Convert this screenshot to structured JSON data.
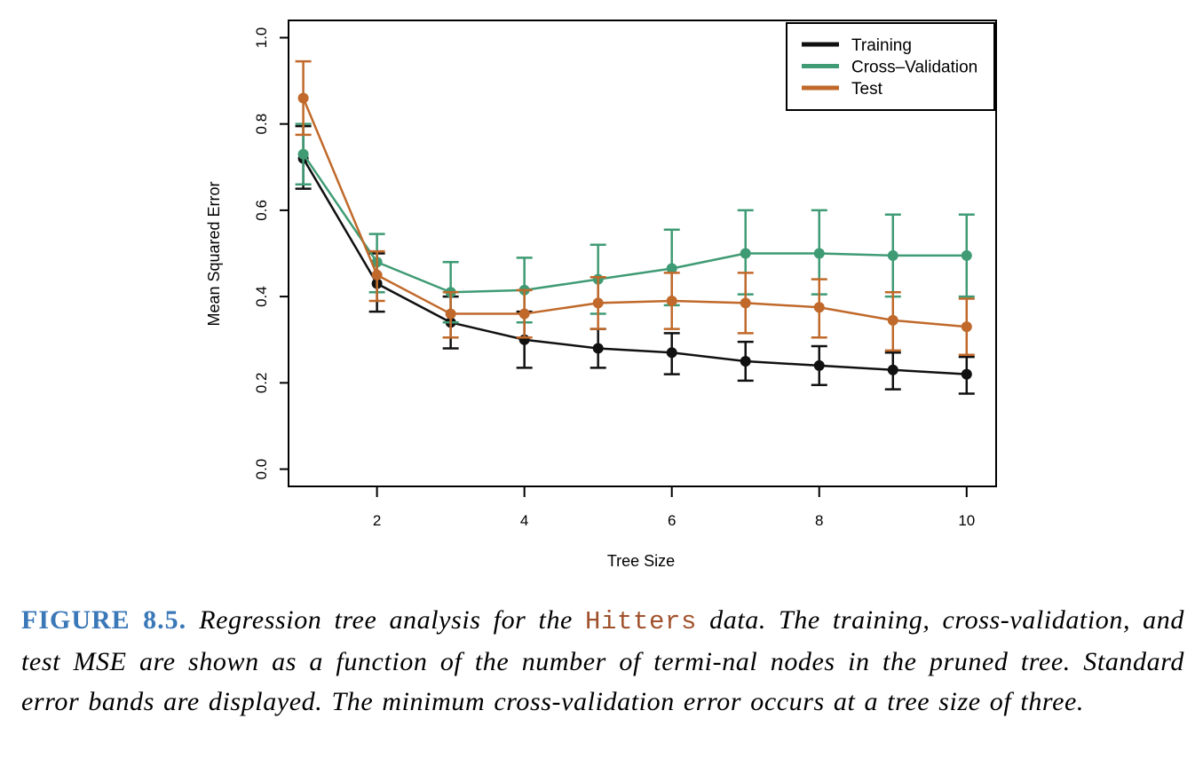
{
  "chart_data": {
    "type": "line",
    "xlabel": "Tree Size",
    "ylabel": "Mean Squared Error",
    "xlim": [
      0.8,
      10.4
    ],
    "ylim": [
      -0.04,
      1.04
    ],
    "x_ticks": [
      2,
      4,
      6,
      8,
      10
    ],
    "y_ticks": [
      0.0,
      0.2,
      0.4,
      0.6,
      0.8,
      1.0
    ],
    "y_tick_labels": [
      "0.0",
      "0.2",
      "0.4",
      "0.6",
      "0.8",
      "1.0"
    ],
    "legend_position": "top-right",
    "error_bars": true,
    "x": [
      1,
      2,
      3,
      4,
      5,
      6,
      7,
      8,
      9,
      10
    ],
    "series": [
      {
        "name": "Training",
        "color": "#111111",
        "values": [
          0.72,
          0.43,
          0.34,
          0.3,
          0.28,
          0.27,
          0.25,
          0.24,
          0.23,
          0.22
        ],
        "lower": [
          0.65,
          0.365,
          0.28,
          0.235,
          0.235,
          0.22,
          0.205,
          0.195,
          0.185,
          0.175
        ],
        "upper": [
          0.795,
          0.5,
          0.4,
          0.365,
          0.325,
          0.315,
          0.295,
          0.285,
          0.27,
          0.26
        ]
      },
      {
        "name": "Cross–Validation",
        "color": "#3f9b74",
        "values": [
          0.73,
          0.48,
          0.41,
          0.415,
          0.44,
          0.465,
          0.5,
          0.5,
          0.495,
          0.495
        ],
        "lower": [
          0.66,
          0.41,
          0.34,
          0.34,
          0.36,
          0.38,
          0.405,
          0.405,
          0.4,
          0.4
        ],
        "upper": [
          0.8,
          0.545,
          0.48,
          0.49,
          0.52,
          0.555,
          0.6,
          0.6,
          0.59,
          0.59
        ]
      },
      {
        "name": "Test",
        "color": "#c0692a",
        "values": [
          0.86,
          0.45,
          0.36,
          0.36,
          0.385,
          0.39,
          0.385,
          0.375,
          0.345,
          0.33
        ],
        "lower": [
          0.775,
          0.39,
          0.305,
          0.305,
          0.325,
          0.325,
          0.315,
          0.305,
          0.275,
          0.265
        ],
        "upper": [
          0.945,
          0.505,
          0.41,
          0.415,
          0.445,
          0.455,
          0.455,
          0.44,
          0.41,
          0.395
        ]
      }
    ]
  },
  "caption": {
    "label": "FIGURE 8.5.",
    "text_before": "Regression tree analysis for the",
    "dataset": "Hitters",
    "text_after": "data. The training, cross-validation, and test MSE are shown as a function of the number of termi-nal nodes in the pruned tree. Standard error bands are displayed. The minimum cross-validation error occurs at a tree size of three."
  }
}
